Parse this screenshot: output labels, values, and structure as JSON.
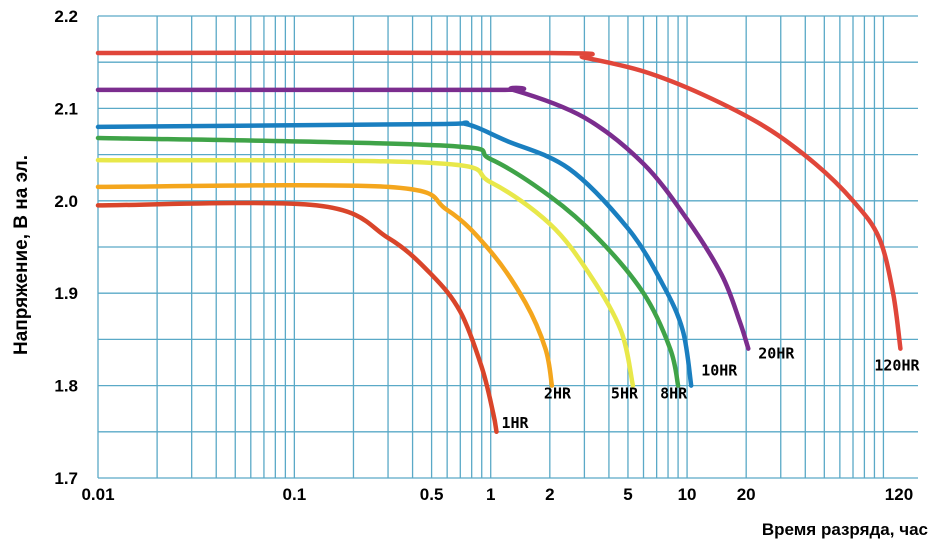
{
  "chart_data": {
    "type": "line",
    "title": "",
    "xlabel": "Время разряда, час",
    "ylabel": "Напряжение, В на эл.",
    "x_scale": "log",
    "xlim": [
      0.01,
      150
    ],
    "ylim": [
      1.7,
      2.2
    ],
    "x_ticks": [
      {
        "value": 0.01,
        "label": "0.01"
      },
      {
        "value": 0.1,
        "label": "0.1"
      },
      {
        "value": 0.5,
        "label": "0.5"
      },
      {
        "value": 1,
        "label": "1"
      },
      {
        "value": 2,
        "label": "2"
      },
      {
        "value": 5,
        "label": "5"
      },
      {
        "value": 10,
        "label": "10"
      },
      {
        "value": 20,
        "label": "20"
      },
      {
        "value": 120,
        "label": "120"
      }
    ],
    "y_ticks": [
      {
        "value": 1.7,
        "label": "1.7"
      },
      {
        "value": 1.8,
        "label": "1.8"
      },
      {
        "value": 1.9,
        "label": "1.9"
      },
      {
        "value": 2.0,
        "label": "2.0"
      },
      {
        "value": 2.1,
        "label": "2.1"
      },
      {
        "value": 2.2,
        "label": "2.2"
      }
    ],
    "grid": true,
    "grid_color": "#5aa9c7",
    "series": [
      {
        "name": "1HR",
        "color": "#d9452a",
        "x": [
          0.01,
          0.13,
          0.3,
          0.5,
          0.7,
          0.9,
          1.03,
          1.07
        ],
        "y": [
          1.995,
          1.995,
          1.96,
          1.92,
          1.88,
          1.82,
          1.77,
          1.75
        ]
      },
      {
        "name": "2HR",
        "color": "#f4a61d",
        "x": [
          0.01,
          0.3,
          0.6,
          1.0,
          1.5,
          1.9,
          2.05
        ],
        "y": [
          2.015,
          2.015,
          1.99,
          1.945,
          1.89,
          1.84,
          1.8
        ]
      },
      {
        "name": "5HR",
        "color": "#e8e84a",
        "x": [
          0.01,
          0.5,
          1.0,
          2.0,
          3.2,
          4.6,
          5.3
        ],
        "y": [
          2.044,
          2.041,
          2.02,
          1.975,
          1.92,
          1.86,
          1.8
        ]
      },
      {
        "name": "8HR",
        "color": "#3fa348",
        "x": [
          0.01,
          0.55,
          1.0,
          2.0,
          3.5,
          6.0,
          8.2,
          9.0
        ],
        "y": [
          2.068,
          2.06,
          2.045,
          2.005,
          1.96,
          1.9,
          1.84,
          1.8
        ]
      },
      {
        "name": "10HR",
        "color": "#1a7fc0",
        "x": [
          0.01,
          0.5,
          0.75,
          1.2,
          2.5,
          5.0,
          7.5,
          9.5,
          10.5
        ],
        "y": [
          2.08,
          2.083,
          2.083,
          2.065,
          2.035,
          1.97,
          1.91,
          1.86,
          1.8
        ]
      },
      {
        "name": "20HR",
        "color": "#7b2d8e",
        "x": [
          0.01,
          1.0,
          1.3,
          3.0,
          6.0,
          10.0,
          15.0,
          18.5,
          20.5
        ],
        "y": [
          2.12,
          2.12,
          2.12,
          2.09,
          2.04,
          1.98,
          1.92,
          1.87,
          1.84
        ]
      },
      {
        "name": "120HR",
        "color": "#e0463a",
        "x": [
          0.01,
          2.0,
          3.0,
          6.0,
          12.0,
          25.0,
          45.0,
          70.0,
          95.0,
          112.0,
          122.0
        ],
        "y": [
          2.16,
          2.16,
          2.155,
          2.14,
          2.115,
          2.08,
          2.04,
          2.0,
          1.96,
          1.9,
          1.84
        ]
      }
    ],
    "series_labels": [
      "1HR",
      "2HR",
      "5HR",
      "8HR",
      "10HR",
      "20HR",
      "120HR"
    ]
  }
}
